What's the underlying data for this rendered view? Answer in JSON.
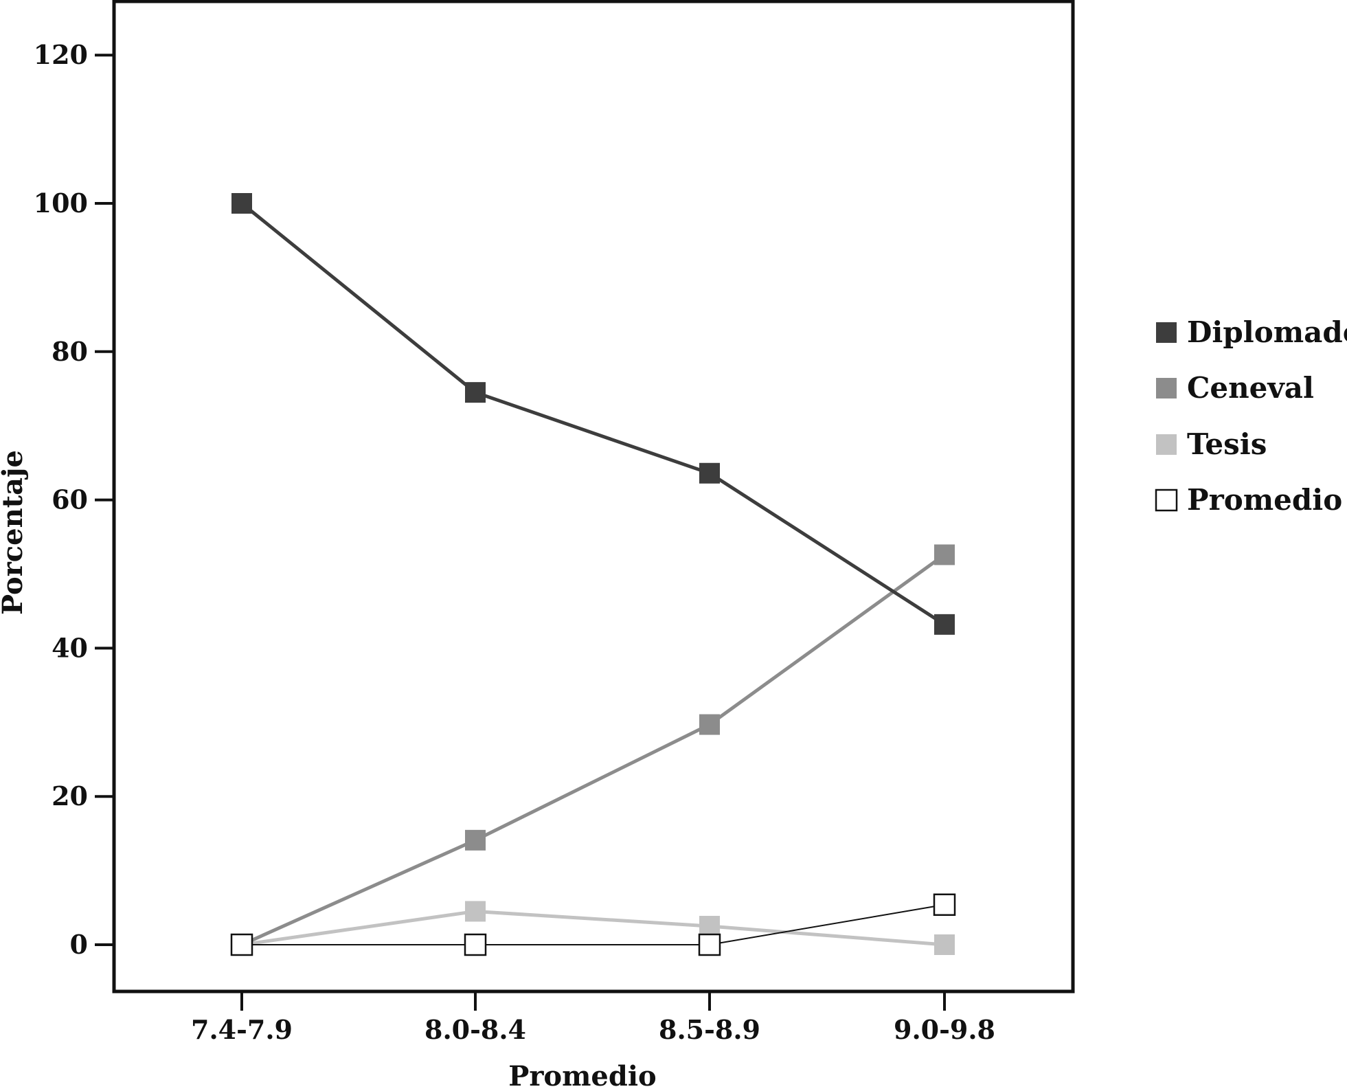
{
  "chart_data": {
    "type": "line",
    "xlabel": "Promedio",
    "ylabel": "Porcentaje",
    "categories": [
      "7.4-7.9",
      "8.0-8.4",
      "8.5-8.9",
      "9.0-9.8"
    ],
    "ylim": [
      -6.5,
      133
    ],
    "yticks": [
      0,
      20,
      40,
      60,
      80,
      100,
      120
    ],
    "grid": false,
    "legend_position": "right",
    "series": [
      {
        "name": "Diplomado",
        "values": [
          100,
          74.5,
          63.6,
          43.2
        ],
        "color": "#3d3d3d",
        "marker": "filled-square"
      },
      {
        "name": "Ceneval",
        "values": [
          0,
          14.1,
          29.7,
          52.6
        ],
        "color": "#8c8c8c",
        "marker": "filled-square"
      },
      {
        "name": "Tesis",
        "values": [
          0,
          4.5,
          2.5,
          0
        ],
        "color": "#c2c2c2",
        "marker": "filled-square"
      },
      {
        "name": "Promedio",
        "values": [
          0,
          0,
          0,
          5.4
        ],
        "color": "#111111",
        "marker": "open-square"
      }
    ]
  }
}
